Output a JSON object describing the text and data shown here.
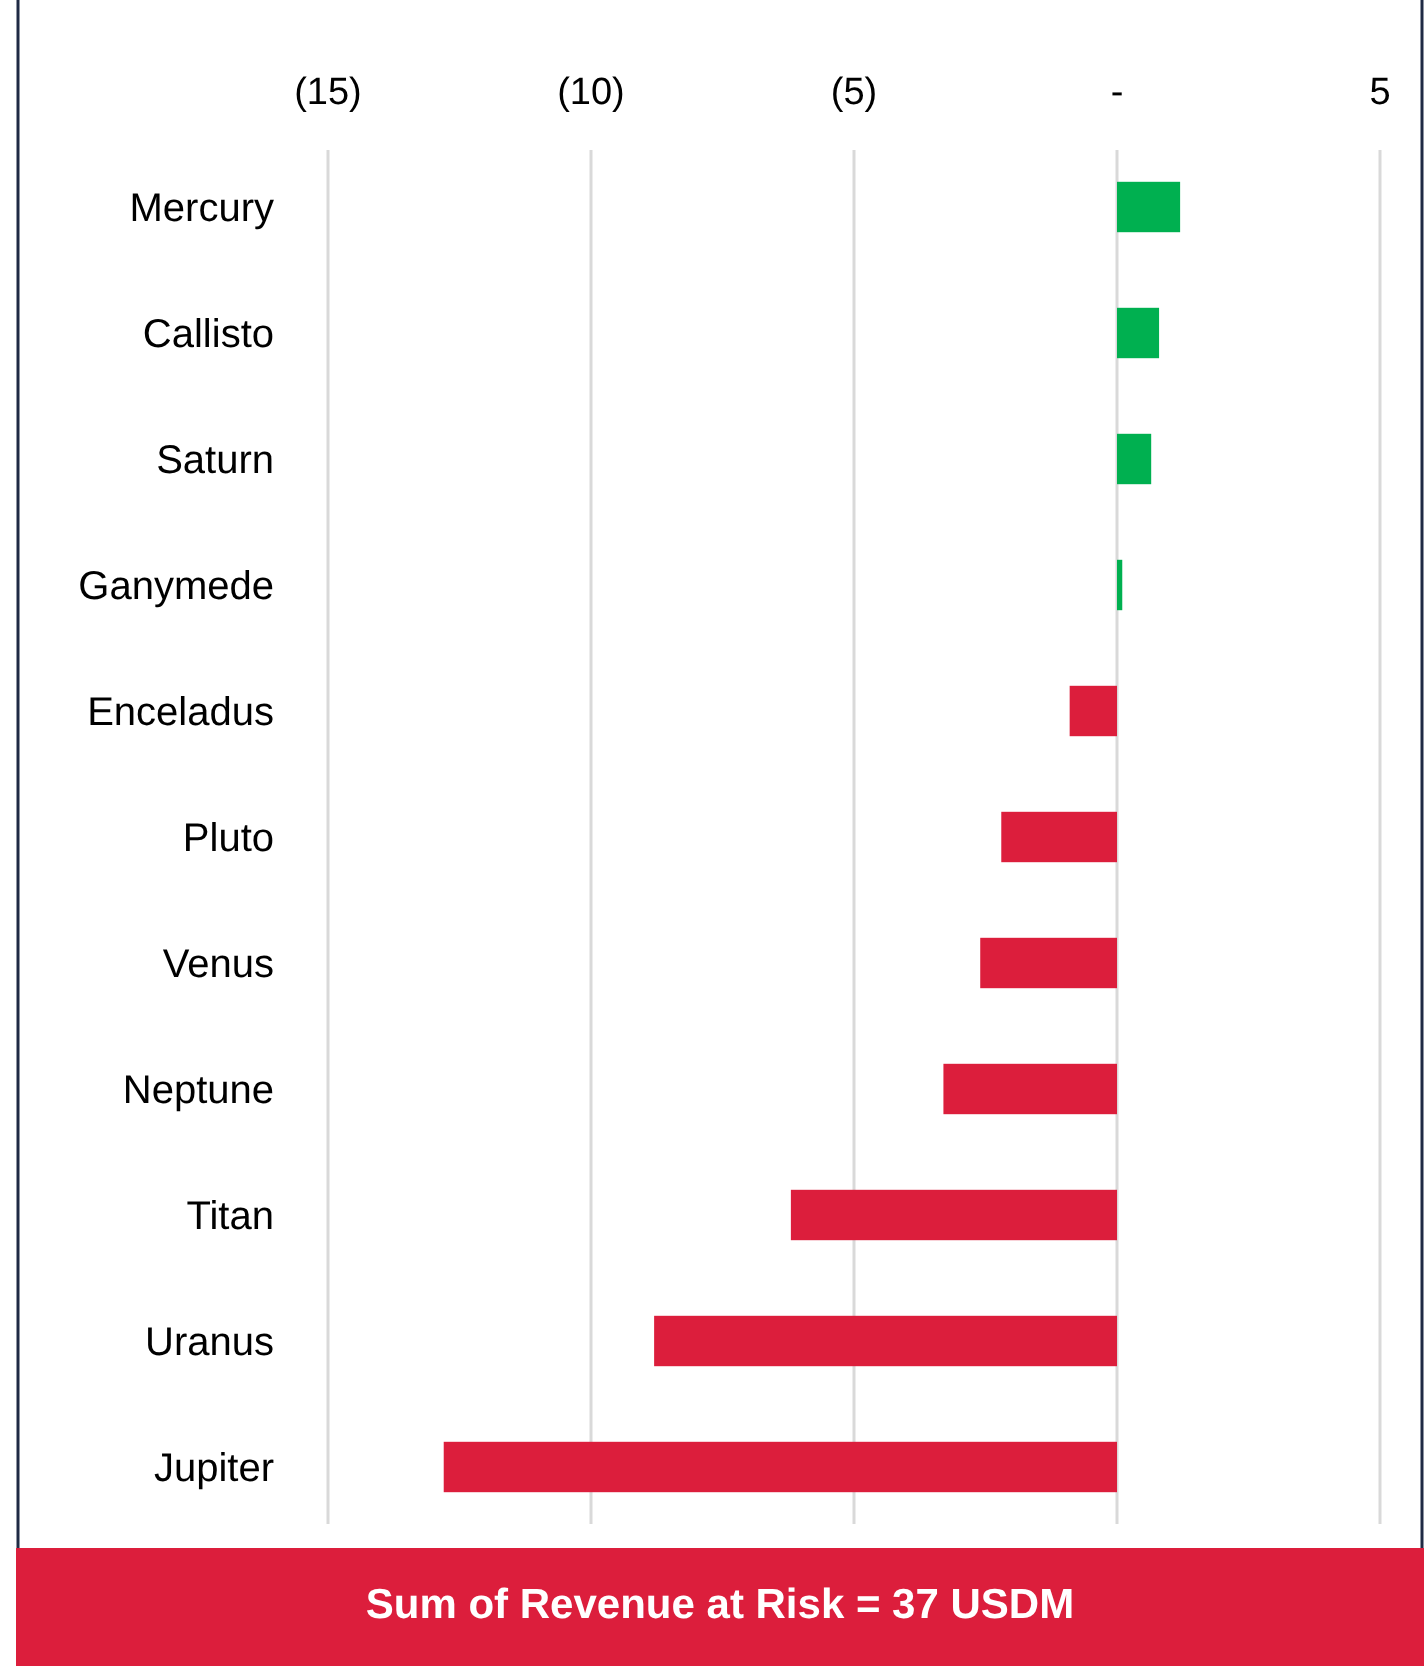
{
  "chart_data": {
    "type": "bar",
    "orientation": "horizontal",
    "categories": [
      "Mercury",
      "Callisto",
      "Saturn",
      "Ganymede",
      "Enceladus",
      "Pluto",
      "Venus",
      "Neptune",
      "Titan",
      "Uranus",
      "Jupiter"
    ],
    "values": [
      1.2,
      0.8,
      0.65,
      0.1,
      -0.9,
      -2.2,
      -2.6,
      -3.3,
      -6.2,
      -8.8,
      -12.8
    ],
    "colors": [
      "#00b050",
      "#00b050",
      "#00b050",
      "#00b050",
      "#dc1e3c",
      "#dc1e3c",
      "#dc1e3c",
      "#dc1e3c",
      "#dc1e3c",
      "#dc1e3c",
      "#dc1e3c"
    ],
    "xlim": [
      -15,
      5
    ],
    "xticks": [
      {
        "value": -15,
        "label": "(15)"
      },
      {
        "value": -10,
        "label": "(10)"
      },
      {
        "value": -5,
        "label": "(5)"
      },
      {
        "value": 0,
        "label": "-"
      },
      5
    ],
    "grid": "x",
    "annotations": [
      "Sum of Revenue at Risk = 37 USDM"
    ]
  }
}
